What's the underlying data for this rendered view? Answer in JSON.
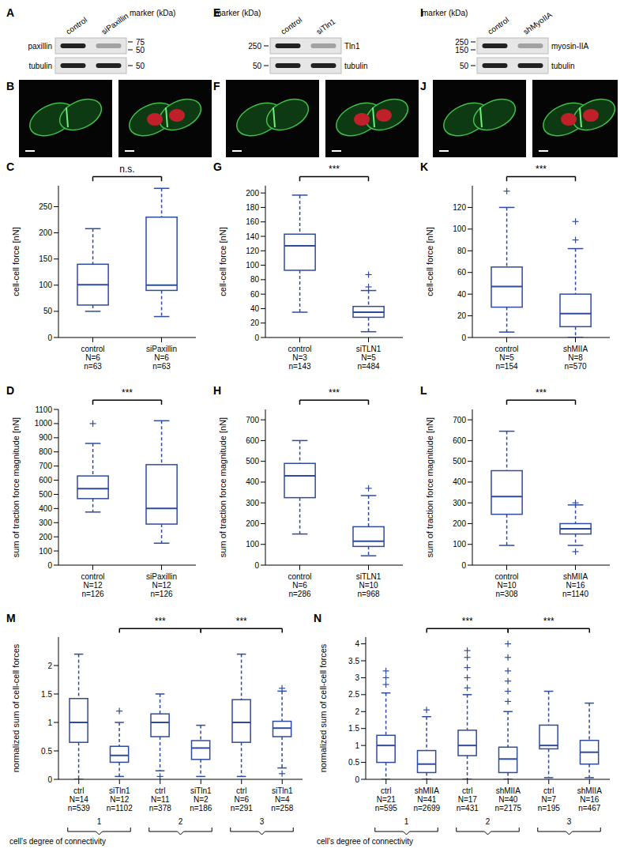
{
  "chart_data": [
    {
      "panel": "C",
      "type": "box",
      "ylabel": "cell-cell force [nN]",
      "categories": [
        "control",
        "siPaxillin"
      ],
      "category_notes": [
        [
          "N=6",
          "n=63"
        ],
        [
          "N=6",
          "n=63"
        ]
      ],
      "color": "#2f4b9e",
      "ylim": [
        0,
        290
      ],
      "yticks": [
        0,
        50,
        100,
        150,
        200,
        250
      ],
      "boxes": [
        {
          "whisker_low": 50,
          "q1": 62,
          "median": 101,
          "q3": 140,
          "whisker_high": 208,
          "outliers": []
        },
        {
          "whisker_low": 40,
          "q1": 90,
          "median": 100,
          "q3": 230,
          "whisker_high": 285,
          "outliers": []
        }
      ],
      "significance": [
        {
          "from": 0,
          "to": 1,
          "label": "n.s."
        }
      ]
    },
    {
      "panel": "D",
      "type": "box",
      "ylabel": "sum of traction force magnitude [nN]",
      "categories": [
        "control",
        "siPaxillin"
      ],
      "category_notes": [
        [
          "N=12",
          "n=126"
        ],
        [
          "N=12",
          "n=126"
        ]
      ],
      "color": "#2f4b9e",
      "ylim": [
        0,
        1100
      ],
      "yticks": [
        0,
        100,
        200,
        300,
        400,
        500,
        600,
        700,
        800,
        900,
        1000,
        1100
      ],
      "boxes": [
        {
          "whisker_low": 375,
          "q1": 470,
          "median": 540,
          "q3": 630,
          "whisker_high": 860,
          "outliers": [
            1000
          ]
        },
        {
          "whisker_low": 155,
          "q1": 290,
          "median": 400,
          "q3": 710,
          "whisker_high": 1020,
          "outliers": []
        }
      ],
      "significance": [
        {
          "from": 0,
          "to": 1,
          "label": "***"
        }
      ]
    },
    {
      "panel": "G",
      "type": "box",
      "ylabel": "cell-cell force [nN]",
      "categories": [
        "control",
        "siTLN1"
      ],
      "category_notes": [
        [
          "N=3",
          "n=143"
        ],
        [
          "N=5",
          "n=484"
        ]
      ],
      "color": "#2f4b9e",
      "ylim": [
        0,
        210
      ],
      "yticks": [
        0,
        20,
        40,
        60,
        80,
        100,
        120,
        140,
        160,
        180,
        200
      ],
      "boxes": [
        {
          "whisker_low": 35,
          "q1": 93,
          "median": 127,
          "q3": 143,
          "whisker_high": 197,
          "outliers": []
        },
        {
          "whisker_low": 8,
          "q1": 28,
          "median": 35,
          "q3": 43,
          "whisker_high": 65,
          "outliers": [
            70,
            87
          ]
        }
      ],
      "significance": [
        {
          "from": 0,
          "to": 1,
          "label": "***"
        }
      ]
    },
    {
      "panel": "H",
      "type": "box",
      "ylabel": "sum of traction force magnitude [nN]",
      "categories": [
        "control",
        "siTLN1"
      ],
      "category_notes": [
        [
          "N=6",
          "n=286"
        ],
        [
          "N=10",
          "n=968"
        ]
      ],
      "color": "#2f4b9e",
      "ylim": [
        0,
        750
      ],
      "yticks": [
        0,
        100,
        200,
        300,
        400,
        500,
        600,
        700
      ],
      "boxes": [
        {
          "whisker_low": 150,
          "q1": 325,
          "median": 430,
          "q3": 490,
          "whisker_high": 600,
          "outliers": []
        },
        {
          "whisker_low": 45,
          "q1": 90,
          "median": 115,
          "q3": 185,
          "whisker_high": 335,
          "outliers": [
            370
          ]
        }
      ],
      "significance": [
        {
          "from": 0,
          "to": 1,
          "label": "***"
        }
      ]
    },
    {
      "panel": "K",
      "type": "box",
      "ylabel": "cell-cell force [nN]",
      "categories": [
        "control",
        "shMIIA"
      ],
      "category_notes": [
        [
          "N=5",
          "n=154"
        ],
        [
          "N=8",
          "n=570"
        ]
      ],
      "color": "#2f4b9e",
      "ylim": [
        0,
        140
      ],
      "yticks": [
        0,
        20,
        40,
        60,
        80,
        100,
        120
      ],
      "boxes": [
        {
          "whisker_low": 5,
          "q1": 28,
          "median": 47,
          "q3": 65,
          "whisker_high": 120,
          "outliers": [
            135
          ]
        },
        {
          "whisker_low": 0,
          "q1": 10,
          "median": 22,
          "q3": 40,
          "whisker_high": 82,
          "outliers": [
            90,
            107
          ]
        }
      ],
      "significance": [
        {
          "from": 0,
          "to": 1,
          "label": "***"
        }
      ]
    },
    {
      "panel": "L",
      "type": "box",
      "ylabel": "sum of traction force magnitude [nN]",
      "categories": [
        "control",
        "shMIIA"
      ],
      "category_notes": [
        [
          "N=10",
          "n=308"
        ],
        [
          "N=16",
          "n=1140"
        ]
      ],
      "color": "#2f4b9e",
      "ylim": [
        0,
        750
      ],
      "yticks": [
        0,
        100,
        200,
        300,
        400,
        500,
        600,
        700
      ],
      "boxes": [
        {
          "whisker_low": 95,
          "q1": 245,
          "median": 330,
          "q3": 455,
          "whisker_high": 645,
          "outliers": []
        },
        {
          "whisker_low": 95,
          "q1": 150,
          "median": 175,
          "q3": 200,
          "whisker_high": 290,
          "outliers": [
            65,
            300
          ]
        }
      ],
      "significance": [
        {
          "from": 0,
          "to": 1,
          "label": "***"
        }
      ]
    },
    {
      "panel": "M",
      "type": "box",
      "ylabel": "normalized sum of cell-cell forces",
      "categories": [
        "ctrl",
        "siTln1",
        "ctrl",
        "siTln1",
        "ctrl",
        "siTln1"
      ],
      "category_notes": [
        [
          "N=14",
          "n=539"
        ],
        [
          "N=12",
          "n=1102"
        ],
        [
          "N=11",
          "n=378"
        ],
        [
          "N=2",
          "n=186"
        ],
        [
          "N=6",
          "n=291"
        ],
        [
          "N=4",
          "n=258"
        ]
      ],
      "color": "#2f4b9e",
      "ylim": [
        0,
        2.5
      ],
      "yticks": [
        0,
        0.5,
        1,
        1.5,
        2
      ],
      "boxes": [
        {
          "whisker_low": 0,
          "q1": 0.65,
          "median": 1.0,
          "q3": 1.42,
          "whisker_high": 2.2,
          "outliers": []
        },
        {
          "whisker_low": 0.05,
          "q1": 0.3,
          "median": 0.42,
          "q3": 0.58,
          "whisker_high": 1.0,
          "outliers": [
            1.2
          ]
        },
        {
          "whisker_low": 0.15,
          "q1": 0.75,
          "median": 1.0,
          "q3": 1.15,
          "whisker_high": 1.5,
          "outliers": [
            0.05
          ]
        },
        {
          "whisker_low": 0.05,
          "q1": 0.35,
          "median": 0.55,
          "q3": 0.68,
          "whisker_high": 0.95,
          "outliers": []
        },
        {
          "whisker_low": 0.05,
          "q1": 0.65,
          "median": 1.0,
          "q3": 1.4,
          "whisker_high": 2.2,
          "outliers": []
        },
        {
          "whisker_low": 0.2,
          "q1": 0.75,
          "median": 0.9,
          "q3": 1.02,
          "whisker_high": 1.55,
          "outliers": [
            0.1,
            1.6
          ]
        }
      ],
      "significance": [
        {
          "from": 1,
          "to": 3,
          "label": "***"
        },
        {
          "from": 3,
          "to": 5,
          "label": "***"
        }
      ],
      "groups": [
        {
          "label": "1",
          "from": 0,
          "to": 1
        },
        {
          "label": "2",
          "from": 2,
          "to": 3
        },
        {
          "label": "3",
          "from": 4,
          "to": 5
        }
      ],
      "group_title": "cell's degree of connectivity"
    },
    {
      "panel": "N",
      "type": "box",
      "ylabel": "normalized sum of cell-cell forces",
      "categories": [
        "ctrl",
        "shMIIA",
        "ctrl",
        "shMIIA",
        "ctrl",
        "shMIIA"
      ],
      "category_notes": [
        [
          "N=21",
          "n=595"
        ],
        [
          "N=41",
          "n=2699"
        ],
        [
          "N=17",
          "n=431"
        ],
        [
          "N=40",
          "n=2175"
        ],
        [
          "N=7",
          "n=195"
        ],
        [
          "N=16",
          "n=467"
        ]
      ],
      "color": "#2f4b9e",
      "ylim": [
        0,
        4.2
      ],
      "yticks": [
        0,
        0.5,
        1,
        1.5,
        2,
        2.5,
        3,
        3.5,
        4
      ],
      "boxes": [
        {
          "whisker_low": 0,
          "q1": 0.5,
          "median": 1.0,
          "q3": 1.3,
          "whisker_high": 2.55,
          "outliers": [
            2.8,
            3.0,
            3.2
          ]
        },
        {
          "whisker_low": 0,
          "q1": 0.2,
          "median": 0.45,
          "q3": 0.85,
          "whisker_high": 1.85,
          "outliers": [
            2.05
          ]
        },
        {
          "whisker_low": 0,
          "q1": 0.7,
          "median": 1.0,
          "q3": 1.45,
          "whisker_high": 2.5,
          "outliers": [
            2.7,
            3.0,
            3.3,
            3.6,
            3.8
          ]
        },
        {
          "whisker_low": 0,
          "q1": 0.2,
          "median": 0.6,
          "q3": 0.95,
          "whisker_high": 2.0,
          "outliers": [
            2.3,
            2.6,
            2.9,
            3.2,
            3.6,
            4.0
          ]
        },
        {
          "whisker_low": 0.05,
          "q1": 0.9,
          "median": 1.0,
          "q3": 1.6,
          "whisker_high": 2.6,
          "outliers": []
        },
        {
          "whisker_low": 0.05,
          "q1": 0.45,
          "median": 0.8,
          "q3": 1.15,
          "whisker_high": 2.25,
          "outliers": []
        }
      ],
      "significance": [
        {
          "from": 1,
          "to": 3,
          "label": "***"
        },
        {
          "from": 3,
          "to": 5,
          "label": "***"
        }
      ],
      "groups": [
        {
          "label": "1",
          "from": 0,
          "to": 1
        },
        {
          "label": "2",
          "from": 2,
          "to": 3
        },
        {
          "label": "3",
          "from": 4,
          "to": 5
        }
      ],
      "group_title": "cell's degree of connectivity"
    }
  ],
  "blots": [
    {
      "panel": "A",
      "lanes": [
        "control",
        "siPaxillin"
      ],
      "marker_title": "marker (kDa)",
      "rows": [
        {
          "name": "paxillin",
          "markers": [
            75,
            50
          ]
        },
        {
          "name": "tubulin",
          "markers": [
            50
          ]
        }
      ]
    },
    {
      "panel": "E",
      "lanes": [
        "control",
        "siTln1"
      ],
      "marker_title": "marker (kDa)",
      "rows": [
        {
          "name": "Tln1",
          "markers": [
            250
          ]
        },
        {
          "name": "tubulin",
          "markers": [
            50
          ]
        }
      ]
    },
    {
      "panel": "I",
      "lanes": [
        "control",
        "shMyoIIA"
      ],
      "marker_title": "marker (kDa)",
      "rows": [
        {
          "name": "myosin-IIA",
          "markers": [
            250,
            150
          ]
        },
        {
          "name": "tubulin",
          "markers": [
            50
          ]
        }
      ]
    }
  ],
  "micrographs": [
    {
      "panel": "B"
    },
    {
      "panel": "F"
    },
    {
      "panel": "J"
    }
  ]
}
